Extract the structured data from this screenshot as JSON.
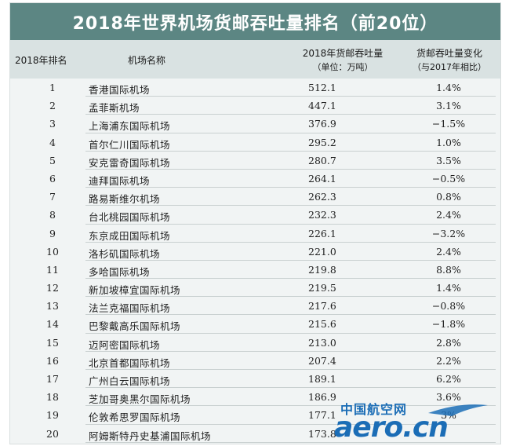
{
  "title": "2018年世界机场货邮吞吐量排名（前20位）",
  "headers": {
    "rank": "2018年排名",
    "name": "机场名称",
    "cargo_line1": "2018年货邮吞吐量",
    "cargo_line2": "（单位：万吨）",
    "change_line1": "货邮吞吐量变化",
    "change_line2": "（与2017年相比）"
  },
  "rows": [
    {
      "rank": "1",
      "name": "香港国际机场",
      "cargo": "512.1",
      "change": "1.4%"
    },
    {
      "rank": "2",
      "name": "孟菲斯机场",
      "cargo": "447.1",
      "change": "3.1%"
    },
    {
      "rank": "3",
      "name": "上海浦东国际机场",
      "cargo": "376.9",
      "change": "−1.5%"
    },
    {
      "rank": "4",
      "name": "首尔仁川国际机场",
      "cargo": "295.2",
      "change": "1.0%"
    },
    {
      "rank": "5",
      "name": "安克雷奇国际机场",
      "cargo": "280.7",
      "change": "3.5%"
    },
    {
      "rank": "6",
      "name": "迪拜国际机场",
      "cargo": "264.1",
      "change": "−0.5%"
    },
    {
      "rank": "7",
      "name": "路易斯维尔机场",
      "cargo": "262.3",
      "change": "0.8%"
    },
    {
      "rank": "8",
      "name": "台北桃园国际机场",
      "cargo": "232.3",
      "change": "2.4%"
    },
    {
      "rank": "9",
      "name": "东京成田国际机场",
      "cargo": "226.1",
      "change": "−3.2%"
    },
    {
      "rank": "10",
      "name": "洛杉矶国际机场",
      "cargo": "221.0",
      "change": "2.4%"
    },
    {
      "rank": "11",
      "name": "多哈国际机场",
      "cargo": "219.8",
      "change": "8.8%"
    },
    {
      "rank": "12",
      "name": "新加坡樟宜国际机场",
      "cargo": "219.5",
      "change": "1.4%"
    },
    {
      "rank": "13",
      "name": "法兰克福国际机场",
      "cargo": "217.6",
      "change": "−0.8%"
    },
    {
      "rank": "14",
      "name": "巴黎戴高乐国际机场",
      "cargo": "215.6",
      "change": "−1.8%"
    },
    {
      "rank": "15",
      "name": "迈阿密国际机场",
      "cargo": "213.0",
      "change": "2.8%"
    },
    {
      "rank": "16",
      "name": "北京首都国际机场",
      "cargo": "207.4",
      "change": "2.2%"
    },
    {
      "rank": "17",
      "name": "广州白云国际机场",
      "cargo": "189.1",
      "change": "6.2%"
    },
    {
      "rank": "18",
      "name": "芝加哥奥黑尔国际机场",
      "cargo": "186.9",
      "change": "3.6%"
    },
    {
      "rank": "19",
      "name": "伦敦希思罗国际机场",
      "cargo": "177.1",
      "change": "3%"
    },
    {
      "rank": "20",
      "name": "阿姆斯特丹史基浦国际机场",
      "cargo": "173.8",
      "change": ""
    }
  ],
  "watermark": {
    "cn": "中国航空网",
    "en": "aero.cn"
  },
  "colors": {
    "title_bg": "#5c8683",
    "header_bg": "#d9e2e2",
    "body_bg": "#f1f4f4",
    "watermark": "#1b6db6"
  }
}
